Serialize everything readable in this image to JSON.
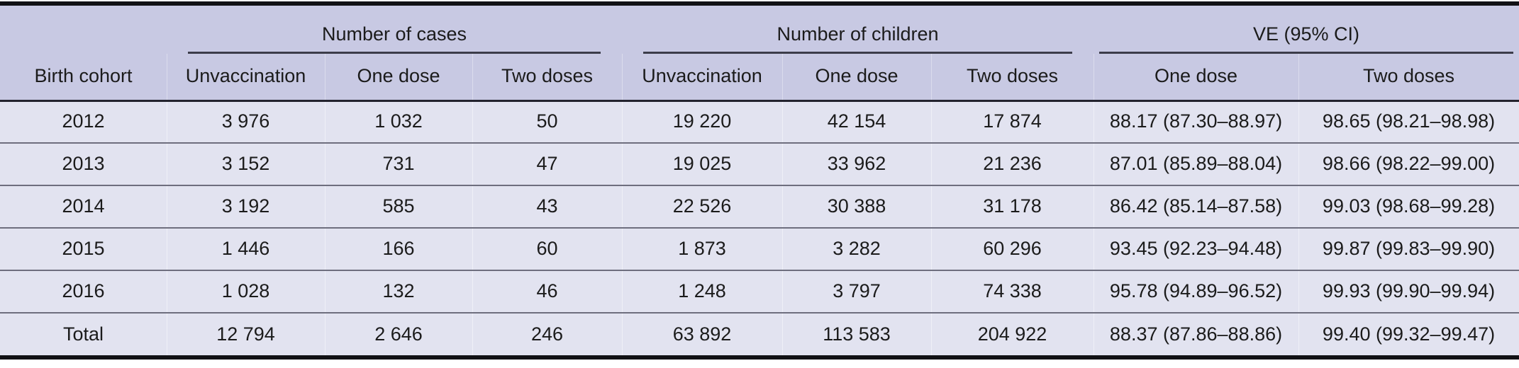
{
  "table": {
    "groups": [
      "Number of cases",
      "Number of children",
      "VE (95% CI)"
    ],
    "columns": [
      "Birth cohort",
      "Unvaccination",
      "One dose",
      "Two doses",
      "Unvaccination",
      "One dose",
      "Two doses",
      "One dose",
      "Two doses"
    ],
    "rows": [
      {
        "cohort": "2012",
        "cells": [
          "3 976",
          "1 032",
          "50",
          "19 220",
          "42 154",
          "17 874",
          "88.17 (87.30–88.97)",
          "98.65 (98.21–98.98)"
        ]
      },
      {
        "cohort": "2013",
        "cells": [
          "3 152",
          "731",
          "47",
          "19 025",
          "33 962",
          "21 236",
          "87.01 (85.89–88.04)",
          "98.66 (98.22–99.00)"
        ]
      },
      {
        "cohort": "2014",
        "cells": [
          "3 192",
          "585",
          "43",
          "22 526",
          "30 388",
          "31 178",
          "86.42 (85.14–87.58)",
          "99.03 (98.68–99.28)"
        ]
      },
      {
        "cohort": "2015",
        "cells": [
          "1 446",
          "166",
          "60",
          "1 873",
          "3 282",
          "60 296",
          "93.45 (92.23–94.48)",
          "99.87 (99.83–99.90)"
        ]
      },
      {
        "cohort": "2016",
        "cells": [
          "1 028",
          "132",
          "46",
          "1 248",
          "3 797",
          "74 338",
          "95.78 (94.89–96.52)",
          "99.93 (99.90–99.94)"
        ]
      },
      {
        "cohort": "Total",
        "cells": [
          "12 794",
          "2 646",
          "246",
          "63 892",
          "113 583",
          "204 922",
          "88.37 (87.86–88.86)",
          "99.40 (99.32–99.47)"
        ]
      }
    ]
  },
  "colors": {
    "header-bg": "#c8c9e3",
    "body-bg": "#e2e3f0",
    "rule-heavy": "#111115",
    "rule-dark": "#23232e",
    "rule-gray": "#6e6e7e",
    "spanner-line": "#3c3c4a",
    "text": "#1b1b1b"
  }
}
